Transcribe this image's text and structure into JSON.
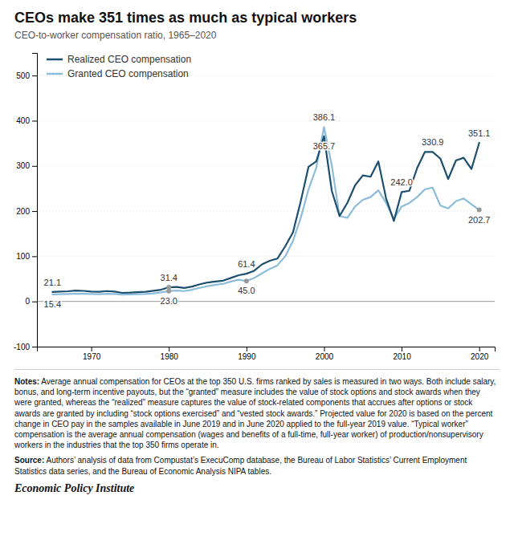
{
  "chart_data": {
    "type": "line",
    "title": "CEOs make 351 times as much as typical workers",
    "subtitle": "CEO-to-worker compensation ratio, 1965–2020",
    "x": [
      1965,
      1966,
      1967,
      1968,
      1969,
      1970,
      1971,
      1972,
      1973,
      1974,
      1975,
      1976,
      1977,
      1978,
      1979,
      1980,
      1981,
      1982,
      1983,
      1984,
      1985,
      1986,
      1987,
      1988,
      1989,
      1990,
      1991,
      1992,
      1993,
      1994,
      1995,
      1996,
      1997,
      1998,
      1999,
      2000,
      2001,
      2002,
      2003,
      2004,
      2005,
      2006,
      2007,
      2008,
      2009,
      2010,
      2011,
      2012,
      2013,
      2014,
      2015,
      2016,
      2017,
      2018,
      2019,
      2020
    ],
    "series": [
      {
        "name": "Realized CEO compensation",
        "color": "#1d4f6e",
        "values": [
          21.1,
          22.0,
          22.5,
          24.2,
          23.4,
          22.0,
          21.5,
          23.0,
          22.0,
          19.0,
          19.5,
          20.5,
          21.5,
          23.5,
          26.0,
          31.4,
          32.0,
          30.0,
          33.0,
          38.0,
          42.0,
          44.0,
          46.0,
          52.0,
          58.0,
          61.4,
          68.0,
          82.0,
          90.0,
          95.0,
          122.0,
          153.0,
          222.0,
          298.0,
          310.0,
          365.7,
          245.0,
          189.0,
          218.0,
          257.0,
          279.0,
          276.0,
          310.0,
          228.0,
          178.0,
          242.0,
          245.0,
          295.0,
          331.0,
          330.9,
          316.0,
          271.0,
          312.0,
          318.0,
          293.0,
          351.1
        ]
      },
      {
        "name": "Granted CEO compensation",
        "color": "#8bbcda",
        "values": [
          15.4,
          16.0,
          16.5,
          17.2,
          17.0,
          16.5,
          16.0,
          17.0,
          16.5,
          15.0,
          15.5,
          16.0,
          16.5,
          18.0,
          20.0,
          23.0,
          24.0,
          23.0,
          26.0,
          30.0,
          34.0,
          37.0,
          39.0,
          44.0,
          48.0,
          45.0,
          52.0,
          62.0,
          72.0,
          80.0,
          100.0,
          134.0,
          185.0,
          248.0,
          296.0,
          386.1,
          301.0,
          189.0,
          185.0,
          210.0,
          225.0,
          231.0,
          246.0,
          218.0,
          183.0,
          210.0,
          218.0,
          231.0,
          248.0,
          252.0,
          212.0,
          206.0,
          222.0,
          228.0,
          215.0,
          202.7
        ]
      }
    ],
    "xlim": [
      1963,
      2022
    ],
    "ylim": [
      -100,
      550
    ],
    "xticks": [
      1970,
      1980,
      1990,
      2000,
      2010,
      2020
    ],
    "yticks": [
      -100,
      0,
      100,
      200,
      300,
      400,
      500
    ],
    "grid": true,
    "legend": "upper left",
    "annotations": [
      {
        "text": "21.1",
        "x": 1965,
        "y": 21.1,
        "series": "Realized CEO compensation"
      },
      {
        "text": "31.4",
        "x": 1980,
        "y": 31.4,
        "series": "Realized CEO compensation",
        "marker": "circle",
        "color": "#999999"
      },
      {
        "text": "61.4",
        "x": 1990,
        "y": 61.4,
        "series": "Realized CEO compensation"
      },
      {
        "text": "365.7",
        "x": 2000,
        "y": 365.7,
        "series": "Realized CEO compensation"
      },
      {
        "text": "330.9",
        "x": 2014,
        "y": 330.9,
        "series": "Realized CEO compensation"
      },
      {
        "text": "351.1",
        "x": 2020,
        "y": 351.1,
        "series": "Realized CEO compensation"
      },
      {
        "text": "15.4",
        "x": 1965,
        "y": 15.4,
        "series": "Granted CEO compensation"
      },
      {
        "text": "23.0",
        "x": 1980,
        "y": 23.0,
        "series": "Granted CEO compensation",
        "marker": "circle",
        "color": "#999999"
      },
      {
        "text": "45.0",
        "x": 1990,
        "y": 45.0,
        "series": "Granted CEO compensation",
        "marker": "circle",
        "color": "#999999"
      },
      {
        "text": "386.1",
        "x": 2000,
        "y": 386.1,
        "series": "Granted CEO compensation"
      },
      {
        "text": "242.0",
        "x": 2010,
        "y": 242.0,
        "series": "Realized CEO compensation"
      },
      {
        "text": "202.7",
        "x": 2020,
        "y": 202.7,
        "series": "Granted CEO compensation",
        "marker": "circle",
        "color": "#999999"
      }
    ],
    "notes_label": "Notes:",
    "notes": "Average annual compensation for CEOs at the top 350 U.S. firms ranked by sales is measured in two ways. Both include salary, bonus, and long-term incentive payouts, but the “granted” measure includes the value of stock options and stock awards when they were granted, whereas the “realized” measure captures the value of stock-related components that accrues after options or stock awards are granted by including “stock options exercised” and “vested stock awards.” Projected value for 2020 is based on the percent change in CEO pay in the samples available in June 2019 and in June 2020 applied to the full-year 2019 value. “Typical worker” compensation is the average annual compensation (wages and benefits of a full-time, full-year worker) of production/nonsupervisory workers in the industries that the top 350 firms operate in.",
    "source_label": "Source:",
    "source": "Authors’ analysis of data from Compustat’s ExecuComp database, the Bureau of Labor Statistics’ Current Employment Statistics data series, and the Bureau of Economic Analysis NIPA tables.",
    "credit": "Economic Policy Institute"
  }
}
